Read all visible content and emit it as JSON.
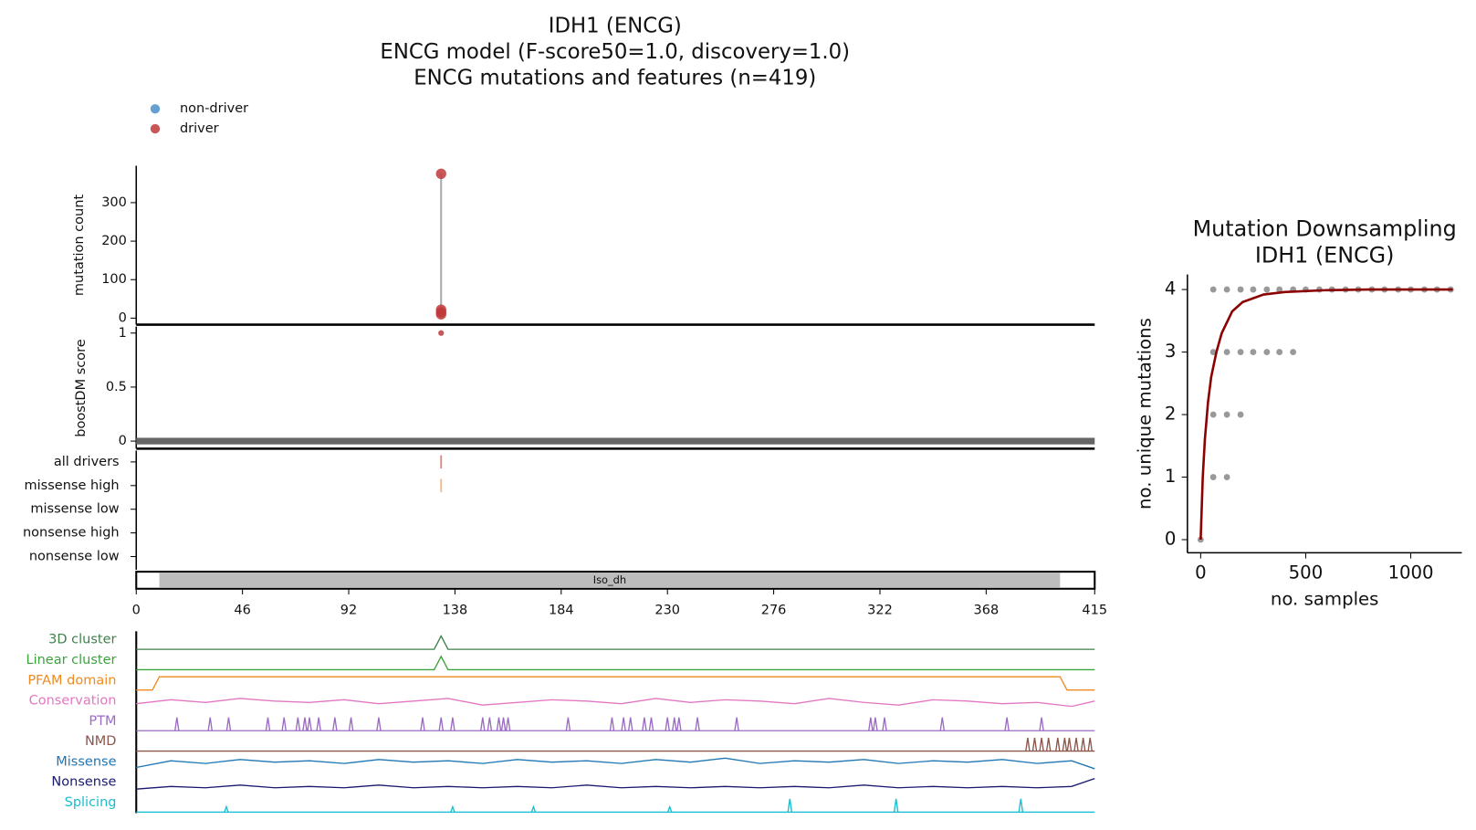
{
  "chart_data": [
    {
      "type": "needle",
      "title": [
        "IDH1 (ENCG)",
        "ENCG model (F-score50=1.0, discovery=1.0)",
        "ENCG mutations and features (n=419)"
      ],
      "series": [
        {
          "name": "non-driver",
          "color": "#4a8fc9",
          "x": [],
          "values": []
        },
        {
          "name": "driver",
          "color": "#c0393b",
          "x": [
            132,
            132,
            132,
            132
          ],
          "values": [
            375,
            22,
            15,
            10
          ]
        }
      ],
      "ylabel": "mutation count",
      "ylim": [
        -17,
        396
      ],
      "yticks": [
        0,
        100,
        200,
        300
      ],
      "score_ylabel": "boostDM score",
      "score_ylim": [
        -0.07,
        1.06
      ],
      "score_yticks": [
        0,
        0.5,
        1
      ],
      "score": {
        "x": [
          132
        ],
        "values": [
          1
        ],
        "color": "#c0393b"
      },
      "rows": [
        {
          "label": "all drivers",
          "x": [
            132
          ],
          "color": "#d98b80"
        },
        {
          "label": "missense high",
          "x": [
            132
          ],
          "color": "#f3b98a"
        },
        {
          "label": "missense low",
          "x": []
        },
        {
          "label": "nonsense high",
          "x": []
        },
        {
          "label": "nonsense low",
          "x": []
        }
      ],
      "domain": {
        "name": "Iso_dh",
        "start": 10,
        "end": 400
      },
      "xlim": [
        0,
        415
      ],
      "xticks": [
        0,
        46,
        92,
        138,
        184,
        230,
        276,
        322,
        368,
        415
      ],
      "tracks": [
        {
          "name": "3D cluster",
          "color": "#3f7f4a",
          "style": "line",
          "x": [
            0,
            129,
            132,
            135,
            415
          ],
          "values": [
            0,
            0,
            1,
            0,
            0
          ]
        },
        {
          "name": "Linear cluster",
          "color": "#3ca33c",
          "style": "line",
          "x": [
            0,
            129,
            132,
            135,
            415
          ],
          "values": [
            0,
            0,
            1,
            0,
            0
          ]
        },
        {
          "name": "PFAM domain",
          "color": "#f08a20",
          "style": "line",
          "x": [
            0,
            7,
            10,
            400,
            403,
            415
          ],
          "values": [
            0,
            0,
            1,
            1,
            0,
            0
          ]
        },
        {
          "name": "Conservation",
          "color": "#e377c2",
          "style": "line",
          "x": [
            0,
            15,
            30,
            45,
            60,
            75,
            90,
            105,
            120,
            135,
            150,
            165,
            180,
            195,
            210,
            225,
            240,
            255,
            270,
            285,
            300,
            315,
            330,
            345,
            360,
            375,
            390,
            405,
            415
          ],
          "values": [
            0.5,
            0.8,
            0.6,
            0.9,
            0.7,
            0.6,
            0.8,
            0.5,
            0.7,
            0.9,
            0.4,
            0.6,
            0.8,
            0.7,
            0.5,
            0.9,
            0.6,
            0.8,
            0.7,
            0.5,
            0.9,
            0.6,
            0.4,
            0.8,
            0.7,
            0.5,
            0.6,
            0.3,
            0.7
          ]
        },
        {
          "name": "PTM",
          "color": "#9b6bc4",
          "style": "spikes",
          "x": [
            17.6,
            32,
            40,
            57,
            64,
            70,
            73,
            75,
            79,
            86,
            93,
            105,
            124,
            132,
            137,
            150,
            153,
            157,
            159,
            161,
            187,
            206,
            211,
            214,
            220,
            223,
            230,
            233,
            235,
            243,
            260,
            318,
            320,
            324,
            349,
            377,
            392
          ],
          "values": [
            1,
            1,
            1,
            1,
            1,
            1,
            1,
            1,
            1,
            1,
            1,
            1,
            1,
            1,
            1,
            1,
            1,
            1,
            1,
            1,
            1,
            1,
            1,
            1,
            1,
            1,
            1,
            1,
            1,
            1,
            1,
            1,
            1,
            1,
            1,
            1,
            1
          ]
        },
        {
          "name": "NMD",
          "color": "#8c564b",
          "style": "spikes",
          "x": [
            386,
            389,
            392,
            395,
            399,
            402,
            404,
            407,
            410,
            413
          ],
          "values": [
            1,
            1,
            1,
            1,
            1,
            1,
            1,
            1,
            1,
            1
          ]
        },
        {
          "name": "Missense",
          "color": "#1f77b4",
          "style": "line",
          "x": [
            0,
            15,
            30,
            45,
            60,
            75,
            90,
            105,
            120,
            135,
            150,
            165,
            180,
            195,
            210,
            225,
            240,
            255,
            270,
            285,
            300,
            315,
            330,
            345,
            360,
            375,
            390,
            405,
            415
          ],
          "values": [
            0.3,
            0.8,
            0.6,
            0.9,
            0.7,
            0.8,
            0.6,
            0.9,
            0.7,
            0.8,
            0.6,
            0.9,
            0.7,
            0.8,
            0.6,
            0.9,
            0.7,
            1.0,
            0.6,
            0.8,
            0.7,
            0.9,
            0.6,
            0.8,
            0.7,
            0.9,
            0.6,
            0.8,
            0.2
          ]
        },
        {
          "name": "Nonsense",
          "color": "#1a1a6e",
          "style": "line",
          "x": [
            0,
            15,
            30,
            45,
            60,
            75,
            90,
            105,
            120,
            135,
            150,
            165,
            180,
            195,
            210,
            225,
            240,
            255,
            270,
            285,
            300,
            315,
            330,
            345,
            360,
            375,
            390,
            405,
            415
          ],
          "values": [
            0.2,
            0.4,
            0.3,
            0.5,
            0.3,
            0.4,
            0.3,
            0.5,
            0.3,
            0.4,
            0.3,
            0.4,
            0.3,
            0.5,
            0.3,
            0.4,
            0.3,
            0.4,
            0.3,
            0.4,
            0.3,
            0.5,
            0.3,
            0.4,
            0.3,
            0.4,
            0.3,
            0.4,
            1.0
          ]
        },
        {
          "name": "Splicing",
          "color": "#17becf",
          "style": "spikes",
          "x": [
            39,
            137,
            172,
            231,
            283,
            329,
            383
          ],
          "values": [
            0.4,
            0.4,
            0.4,
            0.4,
            1,
            1,
            1
          ]
        }
      ]
    },
    {
      "type": "downsampling",
      "title": [
        "Mutation Downsampling",
        "IDH1 (ENCG)"
      ],
      "xlabel": "no. samples",
      "ylabel": "no. unique mutations",
      "xlim": [
        -63,
        1243
      ],
      "xticks": [
        0,
        500,
        1000
      ],
      "ylim": [
        -0.21,
        4.24
      ],
      "yticks": [
        0,
        1,
        2,
        3,
        4
      ],
      "curve": {
        "color": "#8b0000",
        "x": [
          0,
          10,
          20,
          35,
          50,
          75,
          100,
          150,
          200,
          300,
          400,
          600,
          800,
          1000,
          1200
        ],
        "values": [
          0,
          1.0,
          1.6,
          2.2,
          2.6,
          3.0,
          3.3,
          3.65,
          3.8,
          3.92,
          3.96,
          3.99,
          4,
          4,
          4
        ]
      },
      "points": {
        "color": "#555555",
        "x": [
          0,
          60,
          125,
          60,
          125,
          190,
          60,
          125,
          190,
          250,
          315,
          375,
          440,
          60,
          125,
          190,
          250,
          315,
          375,
          440,
          500,
          565,
          625,
          690,
          750,
          815,
          875,
          940,
          1000,
          1065,
          1125,
          1190
        ],
        "values": [
          0,
          1,
          1,
          2,
          2,
          2,
          3,
          3,
          3,
          3,
          3,
          3,
          3,
          4,
          4,
          4,
          4,
          4,
          4,
          4,
          4,
          4,
          4,
          4,
          4,
          4,
          4,
          4,
          4,
          4,
          4,
          4
        ]
      }
    }
  ]
}
